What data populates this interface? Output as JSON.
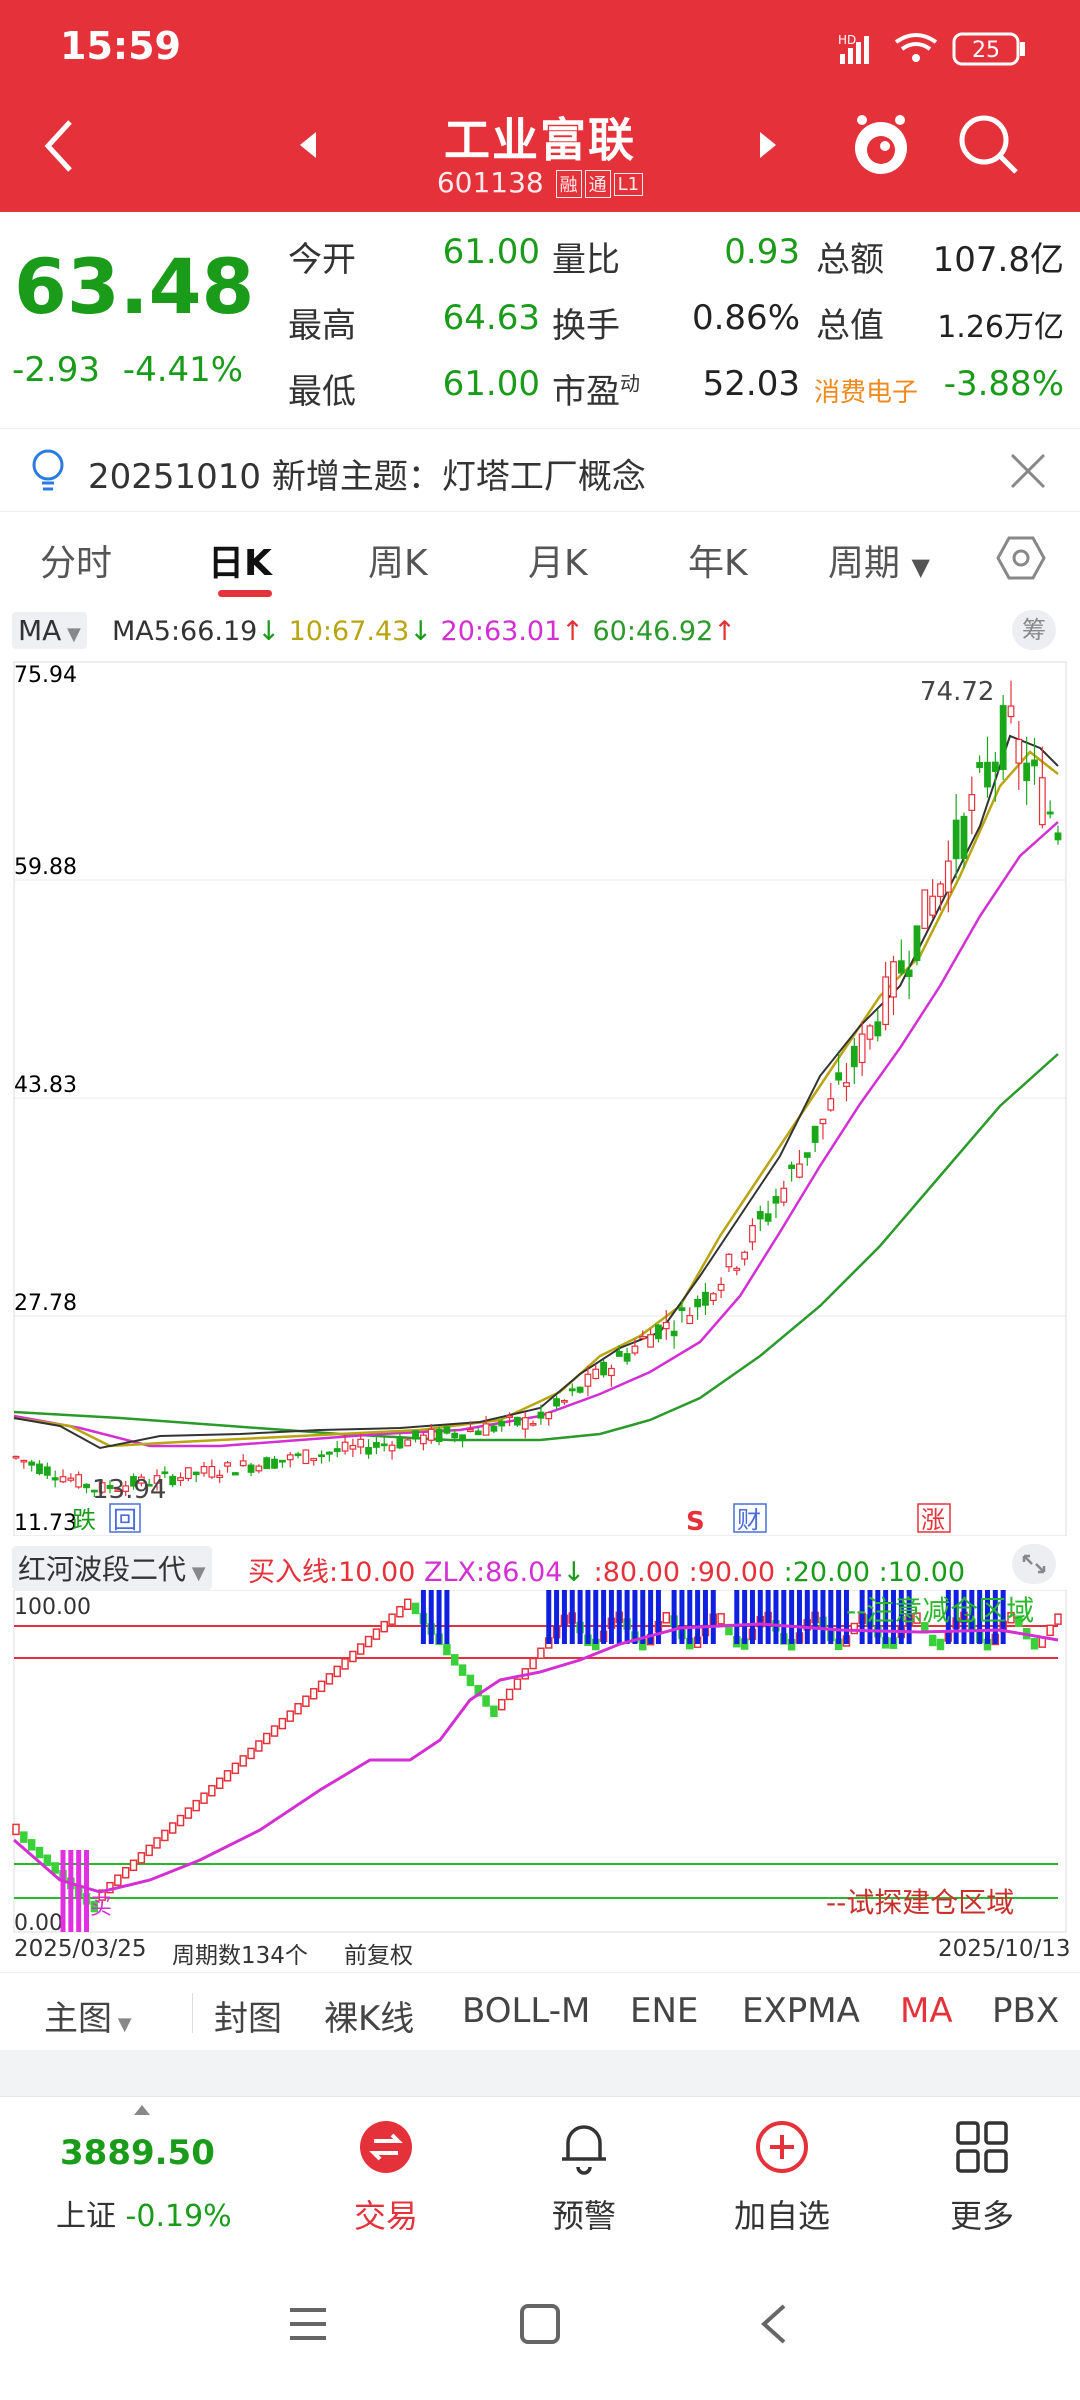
{
  "status_bar": {
    "time": "15:59",
    "battery": "25"
  },
  "header": {
    "title": "工业富联",
    "code": "601138",
    "tags": [
      "融",
      "通",
      "L1"
    ]
  },
  "quote": {
    "price": "63.48",
    "change": "-2.93",
    "change_pct": "-4.41%",
    "rows": [
      {
        "l1": "今开",
        "v1": "61.00",
        "l2": "量比",
        "v2": "0.93",
        "l3": "总额",
        "v3": "107.8亿"
      },
      {
        "l1": "最高",
        "v1": "64.63",
        "l2": "换手",
        "v2": "0.86%",
        "l3": "总值",
        "v3": "1.26万亿"
      },
      {
        "l1": "最低",
        "v1": "61.00",
        "l2": "市盈",
        "l2_sup": "动",
        "v2": "52.03",
        "l3": "消费电子",
        "v3": "-3.88%"
      }
    ]
  },
  "notice": {
    "text": "20251010 新增主题：灯塔工厂概念"
  },
  "tabs": [
    "分时",
    "日K",
    "周K",
    "月K",
    "年K",
    "周期"
  ],
  "ma_legend": {
    "selector": "MA",
    "ma5": "MA5:66.19",
    "ma10": "10:67.43",
    "ma20": "20:63.01",
    "ma60": "60:46.92",
    "chip": "筹",
    "colors": {
      "ma5": "#333333",
      "ma10": "#b9a510",
      "ma20": "#d42fd4",
      "ma60": "#2a9a2a"
    }
  },
  "main_chart": {
    "axis_labels": [
      "75.94",
      "59.88",
      "43.83",
      "27.78",
      "11.73"
    ],
    "high_label": "74.72",
    "low_label": "13.94",
    "markers": {
      "die": "跌",
      "hui": "回",
      "s": "S",
      "cai": "财",
      "zhang": "涨"
    }
  },
  "chart_data": {
    "type": "candlestick",
    "ylim": [
      11.73,
      75.94
    ],
    "x_range": [
      "2025/03/25",
      "2025/10/13"
    ],
    "period_count": 134,
    "key_points": [
      {
        "label": "low",
        "value": 13.94
      },
      {
        "label": "high",
        "value": 74.72
      },
      {
        "label": "last",
        "value": 63.48
      }
    ]
  },
  "sub_indicator": {
    "name": "红河波段二代",
    "buy_line": "买入线:10.00",
    "zlx": "ZLX:86.04",
    "levels": [
      ":80.00",
      ":90.00",
      ":20.00",
      ":10.00"
    ],
    "top_label": "100.00",
    "bottom_label": "0.00",
    "zone_top": "--注意减仓区域",
    "zone_bottom": "--试探建仓区域",
    "buy_mark": "买"
  },
  "date_row": {
    "start": "2025/03/25",
    "periods": "周期数134个",
    "adjust": "前复权",
    "end": "2025/10/13"
  },
  "indicator_bar": [
    "主图",
    "封图",
    "裸K线",
    "BOLL-M",
    "ENE",
    "EXPMA",
    "MA",
    "PBX"
  ],
  "bottom_nav": {
    "index_value": "3889.50",
    "index_name": "上证",
    "index_change": "-0.19%",
    "items": [
      "交易",
      "预警",
      "加自选",
      "更多"
    ]
  }
}
